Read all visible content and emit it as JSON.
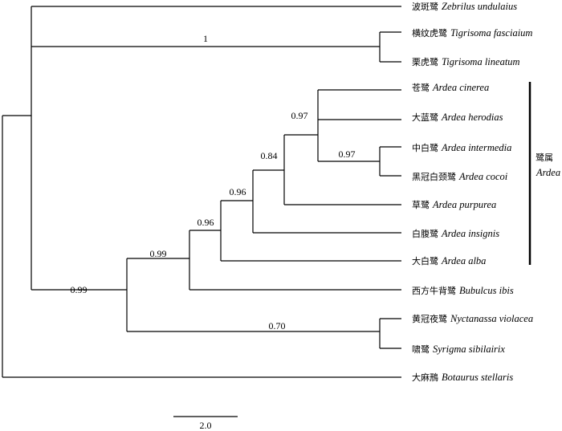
{
  "taxa": [
    {
      "cn": "波斑鹭",
      "sci": "Zebrilus undulaius"
    },
    {
      "cn": "横纹虎鹭",
      "sci": "Tigrisoma fasciaium"
    },
    {
      "cn": "栗虎鹭",
      "sci": "Tigrisoma lineatum"
    },
    {
      "cn": "苍鹭",
      "sci": "Ardea cinerea"
    },
    {
      "cn": "大蓝鹭",
      "sci": "Ardea herodias"
    },
    {
      "cn": "中白鹭",
      "sci": "Ardea intermedia"
    },
    {
      "cn": "黑冠白颈鹭",
      "sci": "Ardea cocoi"
    },
    {
      "cn": "草鹭",
      "sci": "Ardea purpurea"
    },
    {
      "cn": "白腹鹭",
      "sci": "Ardea insignis"
    },
    {
      "cn": "大白鹭",
      "sci": "Ardea alba"
    },
    {
      "cn": "西方牛背鹭",
      "sci": "Bubulcus ibis"
    },
    {
      "cn": "黄冠夜鹭",
      "sci": "Nyctanassa violacea"
    },
    {
      "cn": "啸鹭",
      "sci": "Syrigma sibilairix"
    },
    {
      "cn": "大麻鳽",
      "sci": "Botaurus stellaris"
    }
  ],
  "support_values": {
    "tigrisoma_clade": "1",
    "ardea_cinerea_herodias_group": "0.97",
    "intermedia_cocoi": "0.97",
    "with_purpurea": "0.84",
    "with_insignis": "0.96",
    "with_alba": "0.96",
    "with_bubulcus": "0.99",
    "with_nycticoracini": "0.99",
    "nyctanassa_syrigma": "0.70"
  },
  "clade_label": {
    "cn": "鹭属",
    "sci": "Ardea"
  },
  "scale_bar": {
    "label": "2.0"
  }
}
